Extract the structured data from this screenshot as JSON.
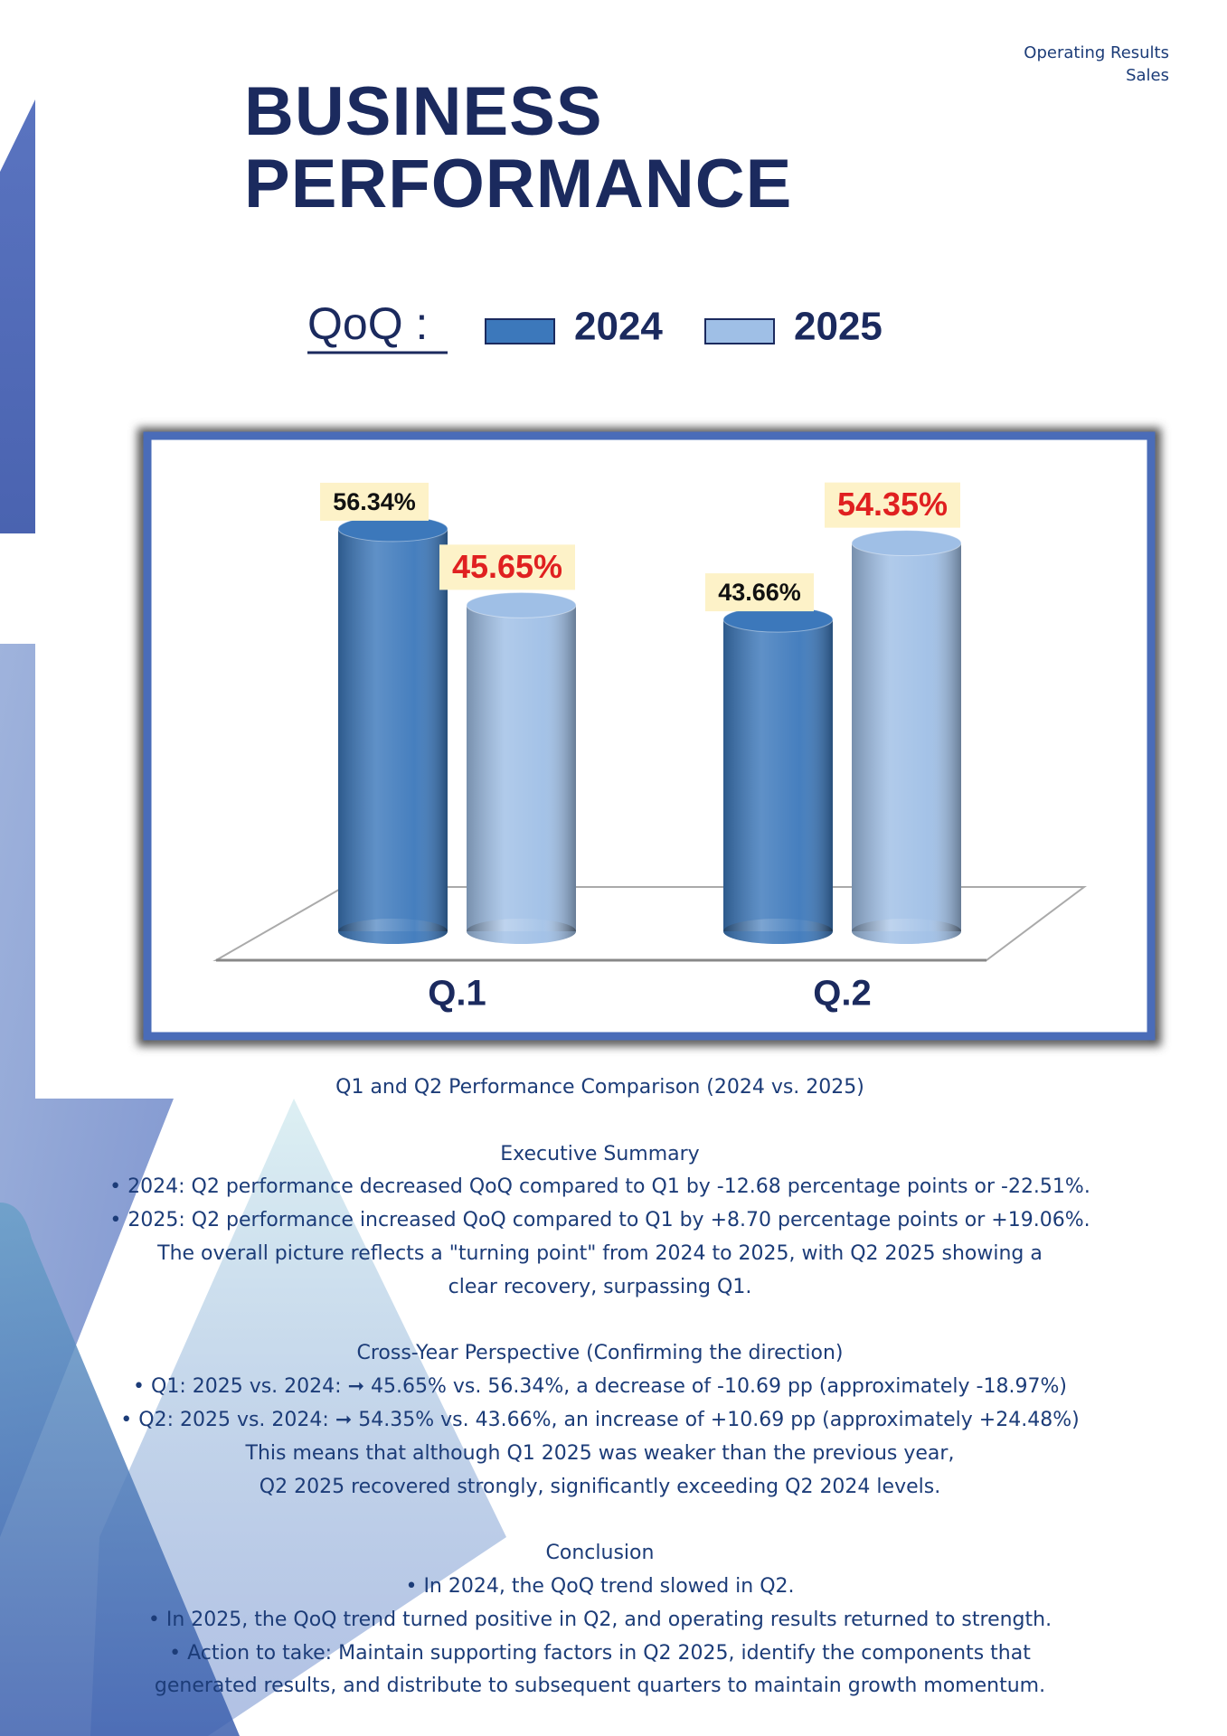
{
  "header": {
    "top_right": [
      "Operating Results",
      "Sales"
    ],
    "title": [
      "BUSINESS",
      "PERFORMANCE"
    ]
  },
  "chart_data": {
    "type": "bar",
    "legend_title": "QoQ :",
    "categories": [
      "Q.1",
      "Q.2"
    ],
    "series": [
      {
        "name": "2024",
        "color": "#3c78bb",
        "values": [
          56.34,
          43.66
        ],
        "value_labels": [
          "56.34%",
          "43.66%"
        ],
        "label_color": "#111111"
      },
      {
        "name": "2025",
        "color": "#9fbfe6",
        "values": [
          45.65,
          54.35
        ],
        "value_labels": [
          "45.65%",
          "54.35%"
        ],
        "label_color": "#e02020"
      }
    ]
  },
  "caption": "Q1 and Q2 Performance Comparison (2024 vs. 2025)",
  "sections": [
    {
      "heading": "Executive Summary",
      "lines": [
        "• 2024: Q2 performance decreased QoQ compared to Q1 by -12.68 percentage points or -22.51%.",
        "• 2025: Q2 performance increased QoQ compared to Q1 by +8.70 percentage points or +19.06%.",
        "The overall picture reflects a \"turning point\" from 2024 to 2025, with Q2 2025 showing a",
        "clear recovery, surpassing Q1."
      ]
    },
    {
      "heading": "Cross-Year Perspective (Confirming the direction)",
      "lines": [
        "• Q1: 2025 vs. 2024: ➞ 45.65% vs. 56.34%, a decrease of -10.69 pp (approximately -18.97%)",
        "• Q2: 2025 vs. 2024: ➞ 54.35% vs. 43.66%, an increase of +10.69 pp (approximately +24.48%)",
        "This means that although Q1 2025 was weaker than the previous year,",
        "Q2 2025 recovered strongly, significantly exceeding Q2 2024 levels."
      ]
    },
    {
      "heading": "Conclusion",
      "lines": [
        "• In 2024, the QoQ trend slowed in Q2.",
        "• In 2025, the QoQ trend turned positive in Q2, and operating results returned to strength.",
        "• Action to take: Maintain supporting factors in Q2 2025, identify the components that",
        "generated results, and distribute to subsequent quarters to maintain growth momentum."
      ]
    }
  ]
}
